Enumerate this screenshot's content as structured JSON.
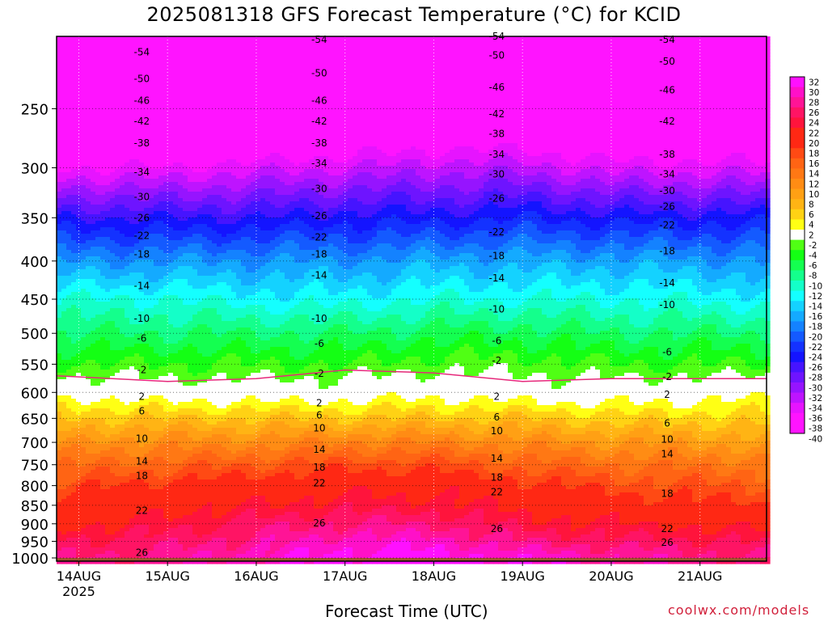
{
  "chart_data": {
    "type": "heatmap",
    "title": "2025081318 GFS Forecast Temperature (°C) for KCID",
    "xlabel": "Forecast Time (UTC)",
    "ylabel": "",
    "credit": "coolwx.com/models",
    "x_ticks": [
      "14AUG",
      "15AUG",
      "16AUG",
      "17AUG",
      "18AUG",
      "19AUG",
      "20AUG",
      "21AUG"
    ],
    "x_year_label": "2025",
    "x_range": [
      "2025-08-13T18:00",
      "2025-08-21T18:00"
    ],
    "y_scale": "log-pressure",
    "y_ticks": [
      250,
      300,
      350,
      400,
      450,
      500,
      550,
      600,
      650,
      700,
      750,
      800,
      850,
      900,
      950,
      1000
    ],
    "y_range_hPa": [
      1000,
      200
    ],
    "grid": true,
    "colorbar": {
      "ticks": [
        32,
        30,
        28,
        26,
        24,
        22,
        20,
        18,
        16,
        14,
        12,
        10,
        8,
        6,
        4,
        2,
        -2,
        -4,
        -6,
        -8,
        -10,
        -12,
        -14,
        -16,
        -18,
        -20,
        -22,
        -24,
        -26,
        -28,
        -30,
        -32,
        -34,
        -36,
        -38,
        -40
      ],
      "colors": [
        "#ff10ff",
        "#ff10c8",
        "#ff1496",
        "#ff1464",
        "#ff143c",
        "#ff2814",
        "#ff2814",
        "#ff4a14",
        "#ff6414",
        "#ff7814",
        "#ff8c14",
        "#ffa014",
        "#ffb414",
        "#ffd214",
        "#ffff14",
        "#ffffff",
        "#50ff14",
        "#14ff14",
        "#14ff50",
        "#14ff8c",
        "#14ffc8",
        "#14ffff",
        "#14d2ff",
        "#14aaff",
        "#1482ff",
        "#145aff",
        "#1432ff",
        "#1414ff",
        "#4614ff",
        "#6e14ff",
        "#9614ff",
        "#be14ff",
        "#e614ff",
        "#ff14ff",
        "#ff14ff"
      ]
    },
    "profile": {
      "times": [
        "2025-08-13T18:00",
        "2025-08-15T00:00",
        "2025-08-16T00:00",
        "2025-08-17T00:00",
        "2025-08-18T00:00",
        "2025-08-19T00:00",
        "2025-08-20T00:00",
        "2025-08-21T18:00"
      ],
      "freezing_level_hPa": [
        570,
        580,
        575,
        560,
        565,
        580,
        575,
        575
      ],
      "levels_hPa": [
        200,
        250,
        300,
        350,
        400,
        450,
        500,
        550,
        600,
        650,
        700,
        750,
        800,
        850,
        900,
        950,
        1000
      ],
      "temps_C": [
        [
          -56,
          -46,
          -36,
          -26,
          -18,
          -12,
          -8,
          -4,
          1,
          6,
          10,
          14,
          17,
          19,
          21,
          24,
          26
        ],
        [
          -56,
          -46,
          -36,
          -26,
          -18,
          -12,
          -8,
          -4,
          0,
          6,
          11,
          15,
          19,
          21,
          23,
          25,
          27
        ],
        [
          -55,
          -45,
          -35,
          -26,
          -18,
          -13,
          -8,
          -4,
          0,
          6,
          11,
          16,
          20,
          22,
          25,
          27,
          29
        ],
        [
          -55,
          -44,
          -34,
          -25,
          -18,
          -13,
          -8,
          -4,
          0,
          6,
          12,
          17,
          21,
          23,
          26,
          29,
          31
        ],
        [
          -54,
          -43,
          -33,
          -25,
          -17,
          -12,
          -7,
          -3,
          1,
          6,
          12,
          17,
          21,
          23,
          26,
          29,
          31
        ],
        [
          -54,
          -43,
          -33,
          -24,
          -17,
          -12,
          -7,
          -3,
          0,
          6,
          11,
          15,
          19,
          21,
          23,
          26,
          30
        ],
        [
          -55,
          -44,
          -35,
          -25,
          -17,
          -12,
          -8,
          -4,
          0,
          5,
          10,
          14,
          17,
          20,
          22,
          25,
          28
        ],
        [
          -55,
          -44,
          -35,
          -25,
          -18,
          -13,
          -8,
          -4,
          1,
          5,
          9,
          13,
          16,
          18,
          21,
          24,
          26
        ]
      ]
    },
    "contour_labels": [
      "-54",
      "-50",
      "-46",
      "-42",
      "-38",
      "-34",
      "-30",
      "-26",
      "-22",
      "-18",
      "-14",
      "-10",
      "-6",
      "-2",
      "2",
      "6",
      "10",
      "14",
      "18",
      "22",
      "26"
    ]
  }
}
